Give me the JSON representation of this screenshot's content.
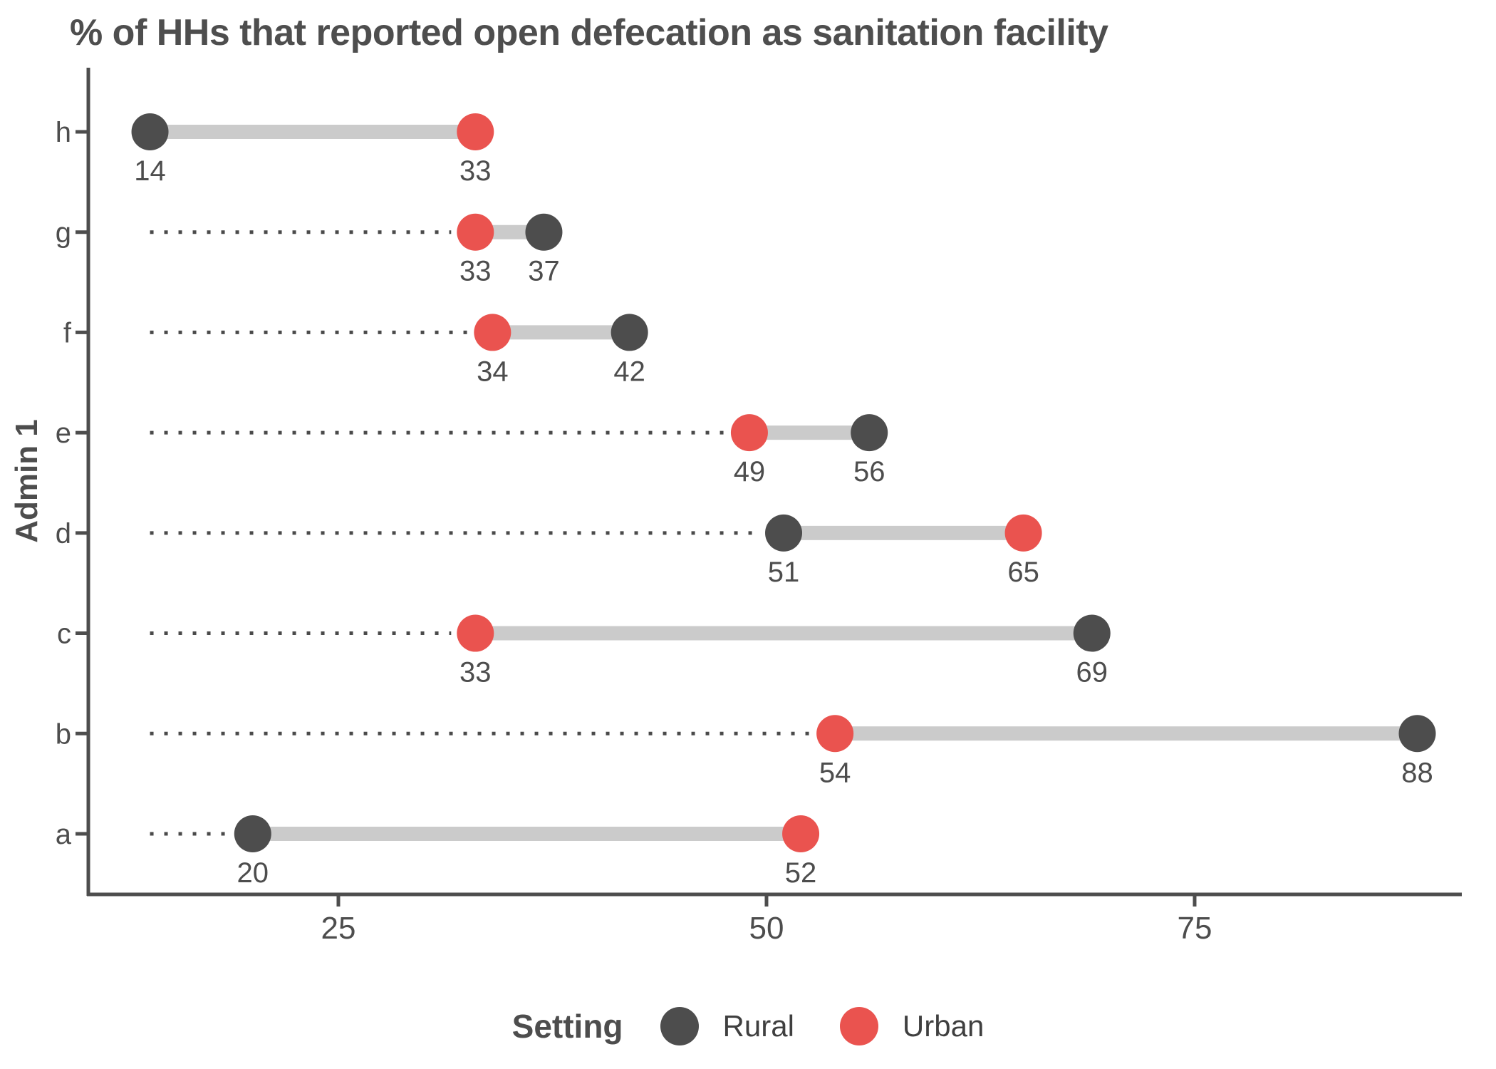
{
  "title": "% of HHs that reported open defecation as sanitation facility",
  "y_axis_label": "Admin 1",
  "legend": {
    "title": "Setting",
    "items": [
      {
        "label": "Rural",
        "color": "#4D4D4D"
      },
      {
        "label": "Urban",
        "color": "#EA534F"
      }
    ]
  },
  "colors": {
    "axis": "#4D4D4D",
    "text": "#4D4D4D",
    "connector": "#CBCBCB",
    "leader_dots": "#4A4A4A",
    "rural": "#4D4D4D",
    "urban": "#EA534F",
    "background": "#FFFFFF"
  },
  "chart_data": {
    "type": "scatter",
    "subtype": "dumbbell",
    "title": "% of HHs that reported open defecation as sanitation facility",
    "xlabel": "",
    "ylabel": "Admin 1",
    "xlim": [
      10.4,
      90.6
    ],
    "x_ticks": [
      25,
      50,
      75
    ],
    "grid": false,
    "legend_position": "bottom",
    "leader_baseline": 14,
    "point_labels_visible": true,
    "categories_top_to_bottom": [
      "h",
      "g",
      "f",
      "e",
      "d",
      "c",
      "b",
      "a"
    ],
    "series": [
      {
        "name": "Rural",
        "color": "#4D4D4D",
        "values_by_category": {
          "h": 14,
          "g": 37,
          "f": 42,
          "e": 56,
          "d": 51,
          "c": 69,
          "b": 88,
          "a": 20
        }
      },
      {
        "name": "Urban",
        "color": "#EA534F",
        "values_by_category": {
          "h": 33,
          "g": 33,
          "f": 34,
          "e": 49,
          "d": 65,
          "c": 33,
          "b": 54,
          "a": 52
        }
      }
    ]
  }
}
